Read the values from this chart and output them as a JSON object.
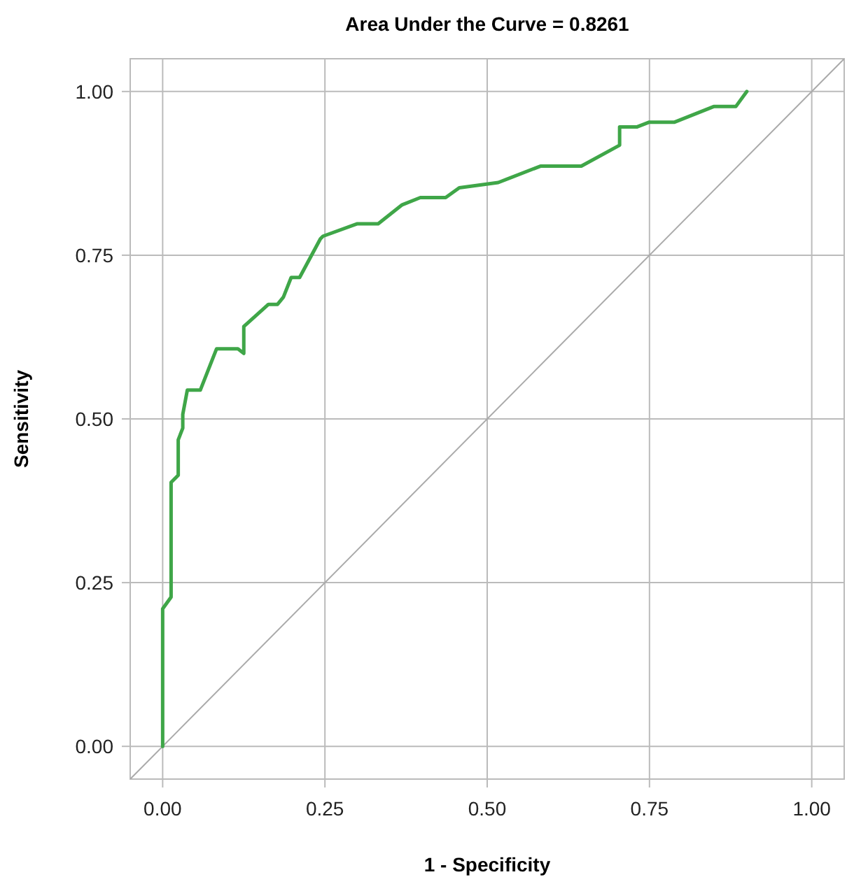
{
  "chart_data": {
    "type": "line",
    "title": "Area Under the Curve = 0.8261",
    "xlabel": "1 - Specificity",
    "ylabel": "Sensitivity",
    "xlim": [
      -0.05,
      1.05
    ],
    "ylim": [
      -0.05,
      1.05
    ],
    "xticks": [
      {
        "value": 0,
        "label": "0.00"
      },
      {
        "value": 0.25,
        "label": "0.25"
      },
      {
        "value": 0.5,
        "label": "0.50"
      },
      {
        "value": 0.75,
        "label": "0.75"
      },
      {
        "value": 1,
        "label": "1.00"
      }
    ],
    "yticks": [
      {
        "value": 0,
        "label": "0.00"
      },
      {
        "value": 0.25,
        "label": "0.25"
      },
      {
        "value": 0.5,
        "label": "0.50"
      },
      {
        "value": 0.75,
        "label": "0.75"
      },
      {
        "value": 1,
        "label": "1.00"
      }
    ],
    "grid": true,
    "line_style": "solid",
    "marker": "none",
    "series": [
      {
        "color": "#aaaaaa",
        "x": [
          -0.05,
          1.05
        ],
        "values": [
          -0.05,
          1.05
        ]
      },
      {
        "color": "#3fa648",
        "x": [
          0,
          0,
          0.013,
          0.013,
          0.024,
          0.024,
          0.031,
          0.031,
          0.038,
          0.058,
          0.083,
          0.116,
          0.125,
          0.125,
          0.163,
          0.177,
          0.186,
          0.198,
          0.211,
          0.243,
          0.247,
          0.3,
          0.332,
          0.369,
          0.397,
          0.436,
          0.457,
          0.517,
          0.582,
          0.645,
          0.704,
          0.704,
          0.731,
          0.749,
          0.788,
          0.849,
          0.883,
          0.9
        ],
        "values": [
          0,
          0.21,
          0.228,
          0.403,
          0.414,
          0.468,
          0.486,
          0.507,
          0.544,
          0.544,
          0.607,
          0.607,
          0.6,
          0.641,
          0.675,
          0.675,
          0.686,
          0.716,
          0.716,
          0.775,
          0.779,
          0.798,
          0.798,
          0.827,
          0.838,
          0.838,
          0.853,
          0.861,
          0.886,
          0.886,
          0.918,
          0.946,
          0.946,
          0.953,
          0.953,
          0.977,
          0.977,
          1.0
        ]
      }
    ]
  }
}
